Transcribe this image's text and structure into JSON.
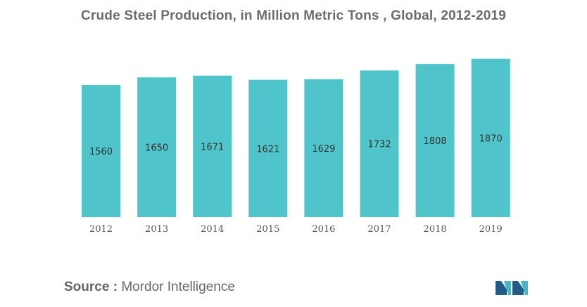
{
  "title": "Crude Steel Production, in Million Metric Tons , Global, 2012-2019",
  "source": {
    "label": "Source :",
    "value": "Mordor Intelligence"
  },
  "colors": {
    "bar": "#4fc4ca",
    "logo_dark": "#1f5b85",
    "logo_light": "#41b8c6"
  },
  "chart_data": {
    "type": "bar",
    "categories": [
      "2012",
      "2013",
      "2014",
      "2015",
      "2016",
      "2017",
      "2018",
      "2019"
    ],
    "values": [
      1560,
      1650,
      1671,
      1621,
      1629,
      1732,
      1808,
      1870
    ],
    "title": "Crude Steel Production, in Million Metric Tons , Global, 2012-2019",
    "xlabel": "",
    "ylabel": "",
    "grid": false,
    "data_labels": true
  }
}
